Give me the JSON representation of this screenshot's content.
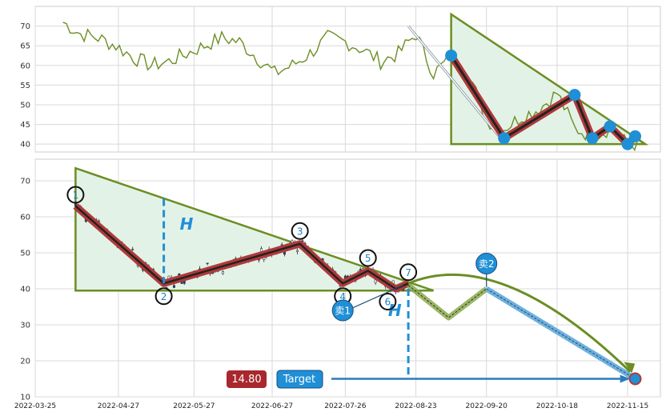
{
  "chart_data": [
    {
      "type": "line",
      "panel": "top",
      "ylim": [
        38,
        75
      ],
      "yticks": [
        40,
        45,
        50,
        55,
        60,
        65,
        70
      ],
      "grid": true,
      "colors": {
        "line": "#6b8e23",
        "triangle_fill": "#e3f2e6",
        "triangle_stroke": "#6b8e23",
        "zigzag": "#222222",
        "zigzag_outer": "#b03a3a",
        "pivot": "#1f8fd6"
      },
      "x": [
        "2022-04-05",
        "2022-04-12",
        "2022-04-19",
        "2022-04-26",
        "2022-05-03",
        "2022-05-10",
        "2022-05-17",
        "2022-05-24",
        "2022-05-31",
        "2022-06-07",
        "2022-06-14",
        "2022-06-21",
        "2022-06-28",
        "2022-07-05",
        "2022-07-12",
        "2022-07-19",
        "2022-07-26",
        "2022-08-02",
        "2022-08-09",
        "2022-08-16",
        "2022-08-23",
        "2022-08-30",
        "2022-09-06",
        "2022-09-13",
        "2022-09-20",
        "2022-09-27",
        "2022-10-04",
        "2022-10-11",
        "2022-10-18",
        "2022-10-25",
        "2022-11-01",
        "2022-11-08",
        "2022-11-15",
        "2022-11-22"
      ],
      "series": [
        {
          "values": [
            71,
            68,
            67,
            65,
            62,
            60,
            61,
            63,
            65,
            67,
            66,
            62,
            58,
            60,
            63,
            67,
            66,
            64,
            61,
            63,
            68,
            58,
            62,
            58,
            46,
            44,
            47,
            49,
            53,
            44,
            42,
            44,
            40,
            40
          ]
        }
      ],
      "pattern": {
        "triangle": [
          [
            "2022-09-06",
            73
          ],
          [
            "2022-09-06",
            40
          ],
          [
            "2022-11-22",
            40
          ]
        ],
        "zigzag": [
          [
            "2022-09-06",
            62.5
          ],
          [
            "2022-09-27",
            41.5
          ],
          [
            "2022-10-25",
            52.5
          ],
          [
            "2022-11-01",
            41.5
          ],
          [
            "2022-11-08",
            44.5
          ],
          [
            "2022-11-15",
            40
          ],
          [
            "2022-11-18",
            42
          ]
        ]
      }
    },
    {
      "type": "candlestick",
      "panel": "bottom",
      "ylim": [
        10,
        76
      ],
      "yticks": [
        10,
        20,
        30,
        40,
        50,
        60,
        70
      ],
      "x_tick_labels": [
        "2022-03-25",
        "2022-04-27",
        "2022-05-27",
        "2022-06-27",
        "2022-07-26",
        "2022-08-23",
        "2022-09-20",
        "2022-10-18",
        "2022-11-15"
      ],
      "grid": true,
      "colors": {
        "triangle_fill": "#e3f2e6",
        "triangle_stroke": "#6b8e23",
        "zigzag_outer": "#b03a3a",
        "zigzag_inner": "#222222",
        "dashed": "#1f8fd6",
        "arrow": "#6b8e23",
        "target_arrow": "#2a7bbf",
        "bubble": "#1f8fd6",
        "price_badge": "#a8282d",
        "target_badge": "#1f8fd6"
      },
      "pattern_points": [
        {
          "label": "1",
          "date": "2022-04-10",
          "value": 63
        },
        {
          "label": "2",
          "date": "2022-05-15",
          "value": 41.5
        },
        {
          "label": "3",
          "date": "2022-07-08",
          "value": 52.5
        },
        {
          "label": "4",
          "date": "2022-07-25",
          "value": 41.5
        },
        {
          "label": "5",
          "date": "2022-08-04",
          "value": 45
        },
        {
          "label": "6",
          "date": "2022-08-15",
          "value": 40
        },
        {
          "label": "7",
          "date": "2022-08-20",
          "value": 41.5
        }
      ],
      "triangle": [
        [
          "2022-04-10",
          73.5
        ],
        [
          "2022-04-10",
          39.5
        ],
        [
          "2022-08-30",
          39.5
        ]
      ],
      "projection": [
        [
          "2022-08-20",
          41
        ],
        [
          "2022-09-05",
          32
        ],
        [
          "2022-09-20",
          40
        ],
        [
          "2022-11-18",
          15
        ]
      ],
      "annotations": [
        {
          "label": "H",
          "date": "2022-05-15",
          "value": 58
        },
        {
          "label": "H",
          "date": "2022-08-12",
          "value": 34
        }
      ],
      "bubbles": [
        {
          "label": "卖1",
          "date": "2022-07-25",
          "value": 34
        },
        {
          "label": "卖2",
          "date": "2022-09-20",
          "value": 47
        }
      ],
      "stop_price": "14.80",
      "target_label": "Target",
      "target_value": 15
    }
  ]
}
